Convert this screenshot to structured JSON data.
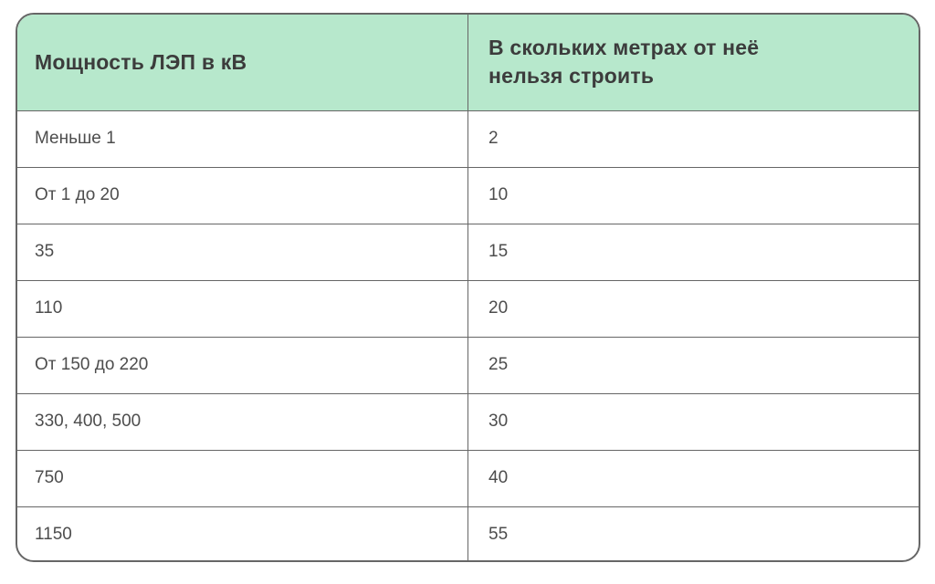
{
  "chart_data": {
    "type": "table",
    "columns": [
      "Мощность ЛЭП в кВ",
      "В скольких метрах от неё нельзя строить"
    ],
    "rows": [
      [
        "Меньше 1",
        "2"
      ],
      [
        "От 1 до 20",
        "10"
      ],
      [
        "35",
        "15"
      ],
      [
        "110",
        "20"
      ],
      [
        "От 150 до 220",
        "25"
      ],
      [
        "330, 400, 500",
        "30"
      ],
      [
        "750",
        "40"
      ],
      [
        "1150",
        "55"
      ]
    ]
  },
  "table": {
    "header": {
      "power_label": "Мощность ЛЭП в кВ",
      "distance_label": "В скольких метрах от неё нельзя строить"
    },
    "rows": [
      {
        "power": "Меньше 1",
        "distance": "2"
      },
      {
        "power": "От 1 до 20",
        "distance": "10"
      },
      {
        "power": "35",
        "distance": "15"
      },
      {
        "power": "110",
        "distance": "20"
      },
      {
        "power": "От 150 до 220",
        "distance": "25"
      },
      {
        "power": "330, 400, 500",
        "distance": "30"
      },
      {
        "power": "750",
        "distance": "40"
      },
      {
        "power": "1150",
        "distance": "55"
      }
    ]
  },
  "colors": {
    "header_bg": "#b7e8cc",
    "border": "#666666",
    "header_text": "#3c3c3c",
    "body_text": "#4d4d4d",
    "page_bg": "#ffffff"
  }
}
